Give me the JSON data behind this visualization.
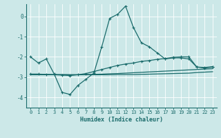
{
  "xlabel": "Humidex (Indice chaleur)",
  "background_color": "#cce8e8",
  "grid_color": "#b0d0d0",
  "line_color": "#1a6b6b",
  "xlim": [
    -0.5,
    23.5
  ],
  "ylim": [
    -4.5,
    0.6
  ],
  "yticks": [
    -4,
    -3,
    -2,
    -1,
    0
  ],
  "xticks": [
    0,
    1,
    2,
    3,
    4,
    5,
    6,
    7,
    8,
    9,
    10,
    11,
    12,
    13,
    14,
    15,
    16,
    17,
    18,
    19,
    20,
    21,
    22,
    23
  ],
  "line1_x": [
    0,
    1,
    2,
    3,
    4,
    5,
    6,
    7,
    8,
    9,
    10,
    11,
    12,
    13,
    14,
    15,
    16,
    17,
    18,
    19,
    20,
    21,
    22,
    23
  ],
  "line1_y": [
    -2.0,
    -2.3,
    -2.1,
    -2.85,
    -3.75,
    -3.85,
    -3.4,
    -3.1,
    -2.8,
    -1.5,
    -0.1,
    0.1,
    0.5,
    -0.55,
    -1.3,
    -1.5,
    -1.8,
    -2.1,
    -2.05,
    -2.05,
    -2.1,
    -2.5,
    -2.55,
    -2.5
  ],
  "line2_x": [
    0,
    1,
    2,
    3,
    4,
    5,
    6,
    7,
    8,
    9,
    10,
    11,
    12,
    13,
    14,
    15,
    16,
    17,
    18,
    19,
    20,
    21,
    22,
    23
  ],
  "line2_y": [
    -2.85,
    -2.85,
    -2.87,
    -2.88,
    -2.9,
    -2.92,
    -2.88,
    -2.82,
    -2.72,
    -2.62,
    -2.52,
    -2.42,
    -2.35,
    -2.3,
    -2.22,
    -2.18,
    -2.12,
    -2.08,
    -2.02,
    -2.0,
    -2.0,
    -2.5,
    -2.52,
    -2.48
  ],
  "line3_x": [
    0,
    1,
    2,
    3,
    4,
    5,
    6,
    7,
    8,
    9,
    10,
    11,
    12,
    13,
    14,
    15,
    16,
    17,
    18,
    19,
    20,
    21,
    22,
    23
  ],
  "line3_y": [
    -2.85,
    -2.85,
    -2.86,
    -2.87,
    -2.87,
    -2.88,
    -2.88,
    -2.87,
    -2.86,
    -2.85,
    -2.83,
    -2.82,
    -2.8,
    -2.78,
    -2.76,
    -2.74,
    -2.72,
    -2.7,
    -2.68,
    -2.66,
    -2.64,
    -2.62,
    -2.6,
    -2.58
  ],
  "line4_x": [
    0,
    1,
    2,
    3,
    4,
    5,
    6,
    7,
    8,
    9,
    10,
    11,
    12,
    13,
    14,
    15,
    16,
    17,
    18,
    19,
    20,
    21,
    22,
    23
  ],
  "line4_y": [
    -2.88,
    -2.88,
    -2.88,
    -2.88,
    -2.88,
    -2.88,
    -2.88,
    -2.88,
    -2.88,
    -2.88,
    -2.88,
    -2.87,
    -2.87,
    -2.87,
    -2.86,
    -2.85,
    -2.84,
    -2.83,
    -2.82,
    -2.81,
    -2.8,
    -2.77,
    -2.75,
    -2.73
  ]
}
